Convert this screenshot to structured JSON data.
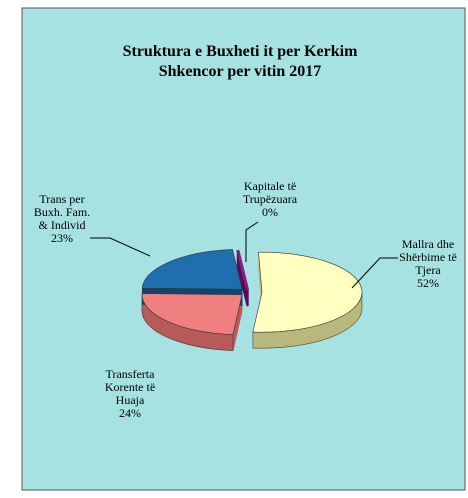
{
  "chart_data": {
    "type": "pie",
    "title": [
      "Struktura e Buxheti it per Kerkim",
      "Shkencor  per vitin 2017"
    ],
    "categories": [
      [
        "Mallra dhe",
        "Shërbime të",
        "Tjera"
      ],
      [
        "Transferta",
        "Korente të",
        "Huaja"
      ],
      [
        "Trans per",
        "Buxh. Fam.",
        "& Individ"
      ],
      [
        "Kapitale të",
        "Trupëzuara"
      ]
    ],
    "values": [
      52,
      24,
      23,
      0
    ],
    "value_labels": [
      "52%",
      "24%",
      "23%",
      "0%"
    ],
    "colors": [
      "#ffffc0",
      "#f08080",
      "#1f6fae",
      "#8a1a8a"
    ],
    "side_colors": [
      "#b8b87c",
      "#b85a5a",
      "#0f4670",
      "#5a0a5a"
    ]
  }
}
